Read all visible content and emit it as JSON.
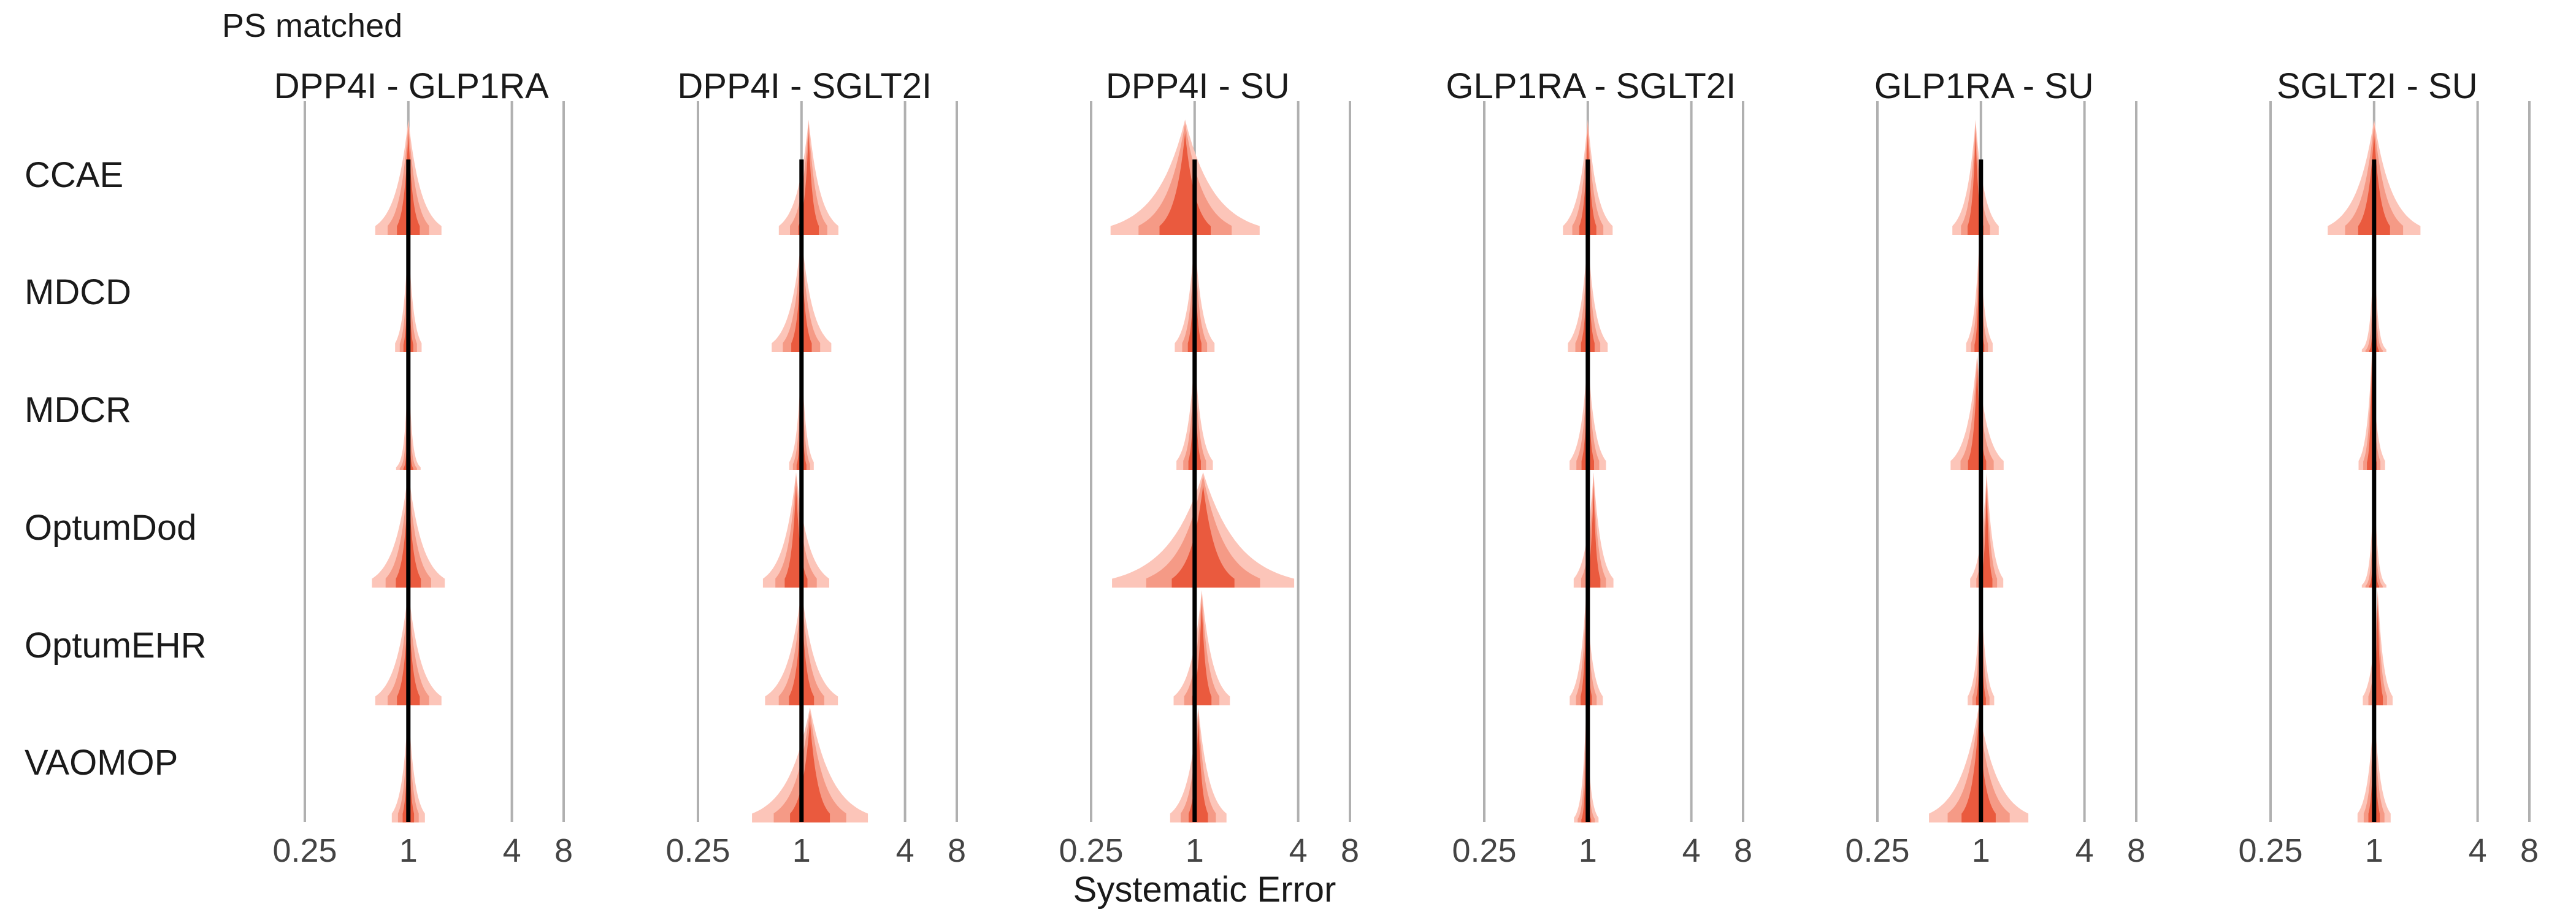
{
  "chart_data": {
    "type": "violin",
    "title": "PS matched",
    "xlabel": "Systematic Error",
    "x_scale": "log",
    "x_ticks": [
      0.25,
      1,
      4,
      8
    ],
    "x_tick_labels": [
      "0.25",
      "1",
      "4",
      "8"
    ],
    "xlim": [
      0.25,
      8
    ],
    "reference_line": 1,
    "grid": true,
    "colors": {
      "outer_band": "#fcc5b9",
      "inner_band": "#f59a86",
      "core": "#ea5a3e",
      "reference": "#000000"
    },
    "comparisons": [
      "DPP4I - GLP1RA",
      "DPP4I - SGLT2I",
      "DPP4I - SU",
      "GLP1RA - SGLT2I",
      "GLP1RA - SU",
      "SGLT2I - SU"
    ],
    "databases": [
      "CCAE",
      "MDCD",
      "MDCR",
      "OptumDod",
      "OptumEHR",
      "VAOMOP"
    ],
    "cells": [
      [
        {
          "mean": 1.0,
          "sd": 0.2
        },
        {
          "mean": 1.1,
          "sd": 0.18
        },
        {
          "mean": 0.88,
          "sd": 0.45
        },
        {
          "mean": 1.0,
          "sd": 0.15
        },
        {
          "mean": 0.93,
          "sd": 0.14
        },
        {
          "mean": 1.0,
          "sd": 0.28
        }
      ],
      [
        {
          "mean": 1.0,
          "sd": 0.08
        },
        {
          "mean": 1.0,
          "sd": 0.18
        },
        {
          "mean": 1.0,
          "sd": 0.12
        },
        {
          "mean": 1.0,
          "sd": 0.12
        },
        {
          "mean": 0.98,
          "sd": 0.08
        },
        {
          "mean": 1.0,
          "sd": 0.05
        }
      ],
      [
        {
          "mean": 1.0,
          "sd": 0.05
        },
        {
          "mean": 1.0,
          "sd": 0.07
        },
        {
          "mean": 1.0,
          "sd": 0.11
        },
        {
          "mean": 1.0,
          "sd": 0.11
        },
        {
          "mean": 0.95,
          "sd": 0.16
        },
        {
          "mean": 0.97,
          "sd": 0.08
        }
      ],
      [
        {
          "mean": 1.0,
          "sd": 0.22
        },
        {
          "mean": 0.93,
          "sd": 0.2
        },
        {
          "mean": 1.12,
          "sd": 0.55
        },
        {
          "mean": 1.08,
          "sd": 0.12
        },
        {
          "mean": 1.08,
          "sd": 0.1
        },
        {
          "mean": 1.0,
          "sd": 0.05
        }
      ],
      [
        {
          "mean": 1.0,
          "sd": 0.2
        },
        {
          "mean": 1.0,
          "sd": 0.22
        },
        {
          "mean": 1.1,
          "sd": 0.17
        },
        {
          "mean": 0.98,
          "sd": 0.1
        },
        {
          "mean": 1.0,
          "sd": 0.08
        },
        {
          "mean": 1.05,
          "sd": 0.09
        }
      ],
      [
        {
          "mean": 1.0,
          "sd": 0.1
        },
        {
          "mean": 1.12,
          "sd": 0.35
        },
        {
          "mean": 1.05,
          "sd": 0.17
        },
        {
          "mean": 0.98,
          "sd": 0.06
        },
        {
          "mean": 0.97,
          "sd": 0.3
        },
        {
          "mean": 1.0,
          "sd": 0.1
        }
      ]
    ]
  }
}
